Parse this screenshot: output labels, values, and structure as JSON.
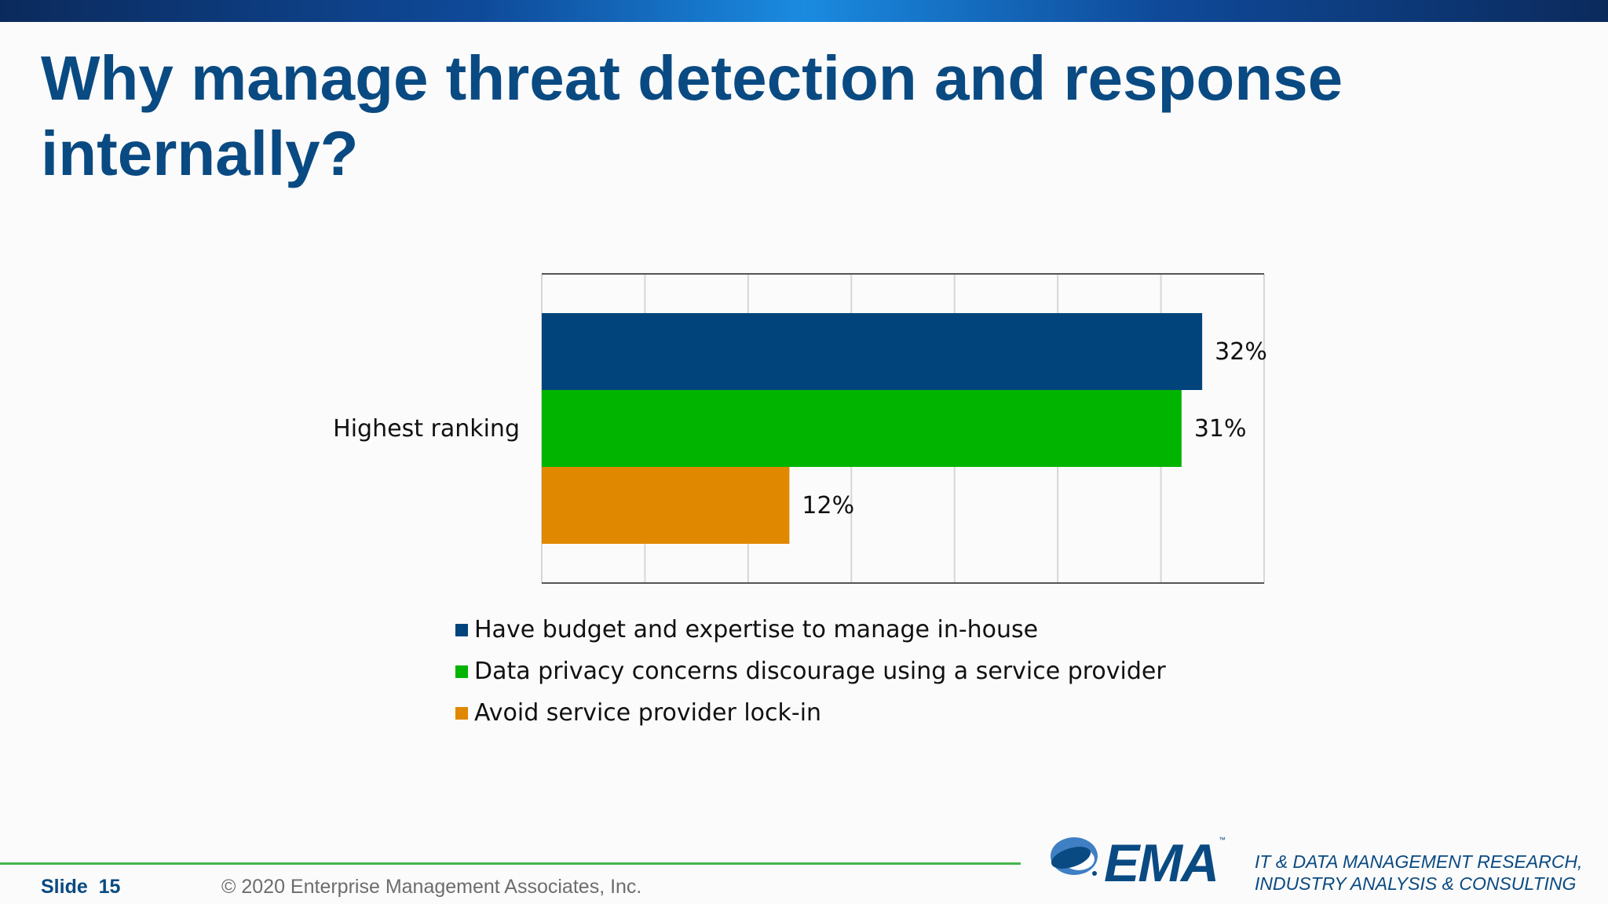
{
  "slide": {
    "title": "Why manage threat detection and response internally?",
    "slide_label": "Slide",
    "slide_number": "15",
    "copyright": "© 2020  Enterprise Management Associates, Inc.",
    "logo_text": "EMA",
    "logo_tm": "™",
    "tagline_line1": "IT & DATA MANAGEMENT RESEARCH,",
    "tagline_line2": "INDUSTRY ANALYSIS & CONSULTING"
  },
  "chart_data": {
    "type": "bar",
    "orientation": "horizontal",
    "categories": [
      "Highest ranking"
    ],
    "series": [
      {
        "name": "Have budget and expertise to manage in-house",
        "values": [
          32
        ],
        "label": "32%",
        "color": "#00447c"
      },
      {
        "name": "Data privacy concerns discourage using a service provider",
        "values": [
          31
        ],
        "label": "31%",
        "color": "#00b400"
      },
      {
        "name": "Avoid service provider lock-in",
        "values": [
          12
        ],
        "label": "12%",
        "color": "#e08800"
      }
    ],
    "xlim": [
      0,
      35
    ],
    "grid_step": 5,
    "grid": true,
    "legend_position": "bottom",
    "title": "",
    "xlabel": "",
    "ylabel": ""
  }
}
